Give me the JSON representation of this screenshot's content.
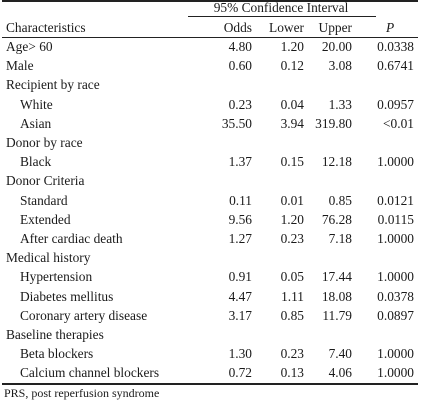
{
  "header": {
    "ci_label": "95% Confidence Interval",
    "characteristics": "Characteristics",
    "odds": "Odds",
    "lower": "Lower",
    "upper": "Upper",
    "p": "P"
  },
  "rows": [
    {
      "label": "Age> 60",
      "odds": "4.80",
      "lower": "1.20",
      "upper": "20.00",
      "p": "0.0338",
      "indent": false
    },
    {
      "label": "Male",
      "odds": "0.60",
      "lower": "0.12",
      "upper": "3.08",
      "p": "0.6741",
      "indent": false
    },
    {
      "label": "Recipient by race",
      "odds": "",
      "lower": "",
      "upper": "",
      "p": "",
      "indent": false
    },
    {
      "label": "White",
      "odds": "0.23",
      "lower": "0.04",
      "upper": "1.33",
      "p": "0.0957",
      "indent": true
    },
    {
      "label": "Asian",
      "odds": "35.50",
      "lower": "3.94",
      "upper": "319.80",
      "p": "<0.01",
      "indent": true
    },
    {
      "label": "Donor by race",
      "odds": "",
      "lower": "",
      "upper": "",
      "p": "",
      "indent": false
    },
    {
      "label": "Black",
      "odds": "1.37",
      "lower": "0.15",
      "upper": "12.18",
      "p": "1.0000",
      "indent": true
    },
    {
      "label": "Donor Criteria",
      "odds": "",
      "lower": "",
      "upper": "",
      "p": "",
      "indent": false
    },
    {
      "label": "Standard",
      "odds": "0.11",
      "lower": "0.01",
      "upper": "0.85",
      "p": "0.0121",
      "indent": true
    },
    {
      "label": "Extended",
      "odds": "9.56",
      "lower": "1.20",
      "upper": "76.28",
      "p": "0.0115",
      "indent": true
    },
    {
      "label": "After cardiac death",
      "odds": "1.27",
      "lower": "0.23",
      "upper": "7.18",
      "p": "1.0000",
      "indent": true
    },
    {
      "label": "Medical history",
      "odds": "",
      "lower": "",
      "upper": "",
      "p": "",
      "indent": false
    },
    {
      "label": "Hypertension",
      "odds": "0.91",
      "lower": "0.05",
      "upper": "17.44",
      "p": "1.0000",
      "indent": true
    },
    {
      "label": "Diabetes mellitus",
      "odds": "4.47",
      "lower": "1.11",
      "upper": "18.08",
      "p": "0.0378",
      "indent": true
    },
    {
      "label": "Coronary artery disease",
      "odds": "3.17",
      "lower": "0.85",
      "upper": "11.79",
      "p": "0.0897",
      "indent": true
    },
    {
      "label": "Baseline therapies",
      "odds": "",
      "lower": "",
      "upper": "",
      "p": "",
      "indent": false
    },
    {
      "label": "Beta blockers",
      "odds": "1.30",
      "lower": "0.23",
      "upper": "7.40",
      "p": "1.0000",
      "indent": true
    },
    {
      "label": "Calcium channel blockers",
      "odds": "0.72",
      "lower": "0.13",
      "upper": "4.06",
      "p": "1.0000",
      "indent": true
    }
  ],
  "footnote": "PRS, post reperfusion syndrome"
}
